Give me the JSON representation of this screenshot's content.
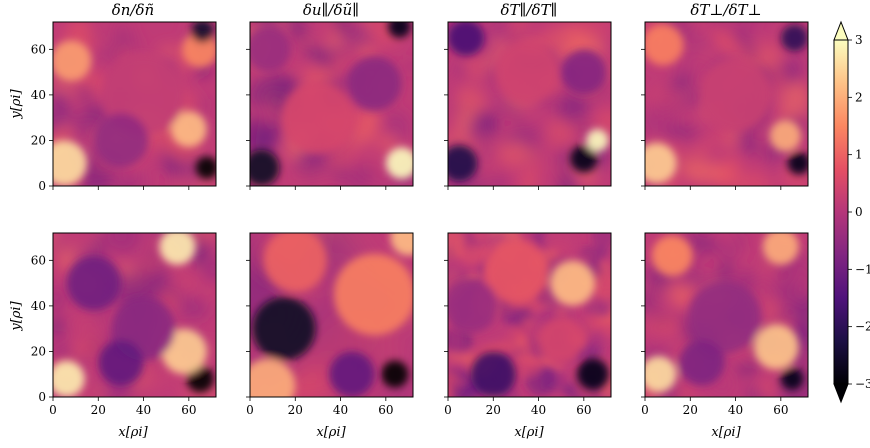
{
  "chart_data": {
    "type": "heatmap",
    "layout": "2 rows x 4 columns",
    "panel_titles": [
      "δn/δñ",
      "δu∥/δũ∥",
      "δT∥/δT∥",
      "δT⊥/δT⊥"
    ],
    "xlabel": "x[ρi]",
    "ylabel": "y[ρi]",
    "xlim": [
      0,
      72
    ],
    "ylim": [
      0,
      72
    ],
    "xticks": [
      0,
      20,
      40,
      60
    ],
    "yticks": [
      0,
      20,
      40,
      60
    ],
    "colorbar": {
      "range": [
        -3,
        3
      ],
      "ticks": [
        -3,
        -2,
        -1,
        0,
        1,
        2,
        3
      ],
      "tick_labels": [
        "−3",
        "−2",
        "−1",
        "0",
        "1",
        "2",
        "3"
      ],
      "colormap": "magma",
      "extend": "both"
    },
    "colormap_stops": [
      "#000004",
      "#1c1044",
      "#4f127b",
      "#812581",
      "#b5367a",
      "#e55064",
      "#fb8761",
      "#fec287",
      "#fcfdbf"
    ],
    "grid": false
  }
}
